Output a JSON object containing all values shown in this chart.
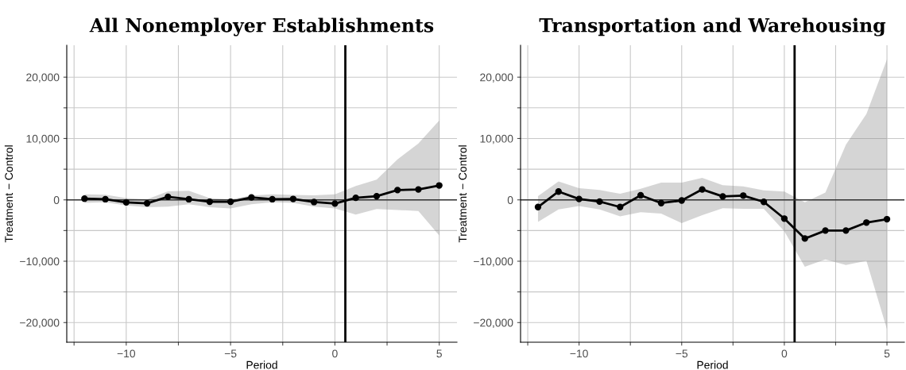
{
  "chart_data": [
    {
      "type": "line",
      "title": "All Nonemployer Establishments",
      "xlabel": "Period",
      "ylabel": "Treatment − Control",
      "x": [
        -12,
        -11,
        -10,
        -9,
        -8,
        -7,
        -6,
        -5,
        -4,
        -3,
        -2,
        -1,
        0,
        1,
        2,
        3,
        4,
        5
      ],
      "series": [
        {
          "color": "#000000",
          "values": [
            200,
            100,
            -400,
            -560,
            500,
            100,
            -300,
            -300,
            400,
            100,
            150,
            -350,
            -600,
            330,
            600,
            1600,
            1700,
            2350
          ],
          "upper": [
            900,
            850,
            300,
            100,
            1400,
            1500,
            300,
            100,
            700,
            900,
            800,
            750,
            900,
            2250,
            3300,
            6600,
            9200,
            12950
          ],
          "lower": [
            -500,
            -400,
            -900,
            -1200,
            -1100,
            -700,
            -1200,
            -1400,
            -700,
            -400,
            -500,
            -1100,
            -1400,
            -2400,
            -1500,
            -1650,
            -1800,
            -5800
          ]
        }
      ],
      "xlim": [
        -12.85,
        5.85
      ],
      "ylim": [
        -23200,
        25200
      ],
      "xticks": [
        {
          "value": -12.5,
          "label": null
        },
        {
          "value": -10,
          "label": "−10"
        },
        {
          "value": -7.5,
          "label": null
        },
        {
          "value": -5,
          "label": "−5"
        },
        {
          "value": -2.5,
          "label": null
        },
        0,
        {
          "value": 2.5,
          "label": null
        },
        5
      ],
      "yticks": [
        {
          "value": -20000,
          "label": "−20,000"
        },
        {
          "value": -15000,
          "label": null
        },
        {
          "value": -10000,
          "label": "−10,000"
        },
        {
          "value": -5000,
          "label": null
        },
        0,
        {
          "value": 5000,
          "label": null
        },
        {
          "value": 10000,
          "label": "10,000"
        },
        {
          "value": 15000,
          "label": null
        },
        {
          "value": 20000,
          "label": "20,000"
        }
      ],
      "ref_lines": [
        {
          "axis": "x",
          "value": 0.5,
          "color": "#000000"
        },
        {
          "axis": "y",
          "value": 0,
          "color": "#333333"
        }
      ],
      "grid": true,
      "marker": "circle",
      "line_style": "solid",
      "legend": false
    },
    {
      "type": "line",
      "title": "Transportation and Warehousing",
      "xlabel": "Period",
      "ylabel": "Treatment − Control",
      "x": [
        -12,
        -11,
        -10,
        -9,
        -8,
        -7,
        -6,
        -5,
        -4,
        -3,
        -2,
        -1,
        0,
        1,
        2,
        3,
        4,
        5
      ],
      "series": [
        {
          "color": "#000000",
          "values": [
            -1170,
            1360,
            140,
            -280,
            -1170,
            750,
            -520,
            -100,
            1700,
            560,
            700,
            -330,
            -3050,
            -6300,
            -5000,
            -5000,
            -3700,
            -3150
          ],
          "upper": [
            600,
            3000,
            1900,
            1600,
            1000,
            1800,
            2800,
            2800,
            3600,
            2400,
            2200,
            1550,
            1350,
            -400,
            1200,
            9000,
            14000,
            22900
          ],
          "lower": [
            -3600,
            -1550,
            -1000,
            -1550,
            -2700,
            -2000,
            -2250,
            -3800,
            -2500,
            -1350,
            -1450,
            -1450,
            -5100,
            -10900,
            -9700,
            -10600,
            -9950,
            -21100
          ]
        }
      ],
      "xlim": [
        -12.85,
        5.85
      ],
      "ylim": [
        -23200,
        25200
      ],
      "xticks": [
        {
          "value": -12.5,
          "label": null
        },
        {
          "value": -10,
          "label": "−10"
        },
        {
          "value": -7.5,
          "label": null
        },
        {
          "value": -5,
          "label": "−5"
        },
        {
          "value": -2.5,
          "label": null
        },
        0,
        {
          "value": 2.5,
          "label": null
        },
        5
      ],
      "yticks": [
        {
          "value": -20000,
          "label": "−20,000"
        },
        {
          "value": -15000,
          "label": null
        },
        {
          "value": -10000,
          "label": "−10,000"
        },
        {
          "value": -5000,
          "label": null
        },
        0,
        {
          "value": 5000,
          "label": null
        },
        {
          "value": 10000,
          "label": "10,000"
        },
        {
          "value": 15000,
          "label": null
        },
        {
          "value": 20000,
          "label": "20,000"
        }
      ],
      "ref_lines": [
        {
          "axis": "x",
          "value": 0.5,
          "color": "#000000"
        },
        {
          "axis": "y",
          "value": 0,
          "color": "#333333"
        }
      ],
      "grid": true,
      "marker": "circle",
      "line_style": "solid",
      "legend": false
    }
  ]
}
